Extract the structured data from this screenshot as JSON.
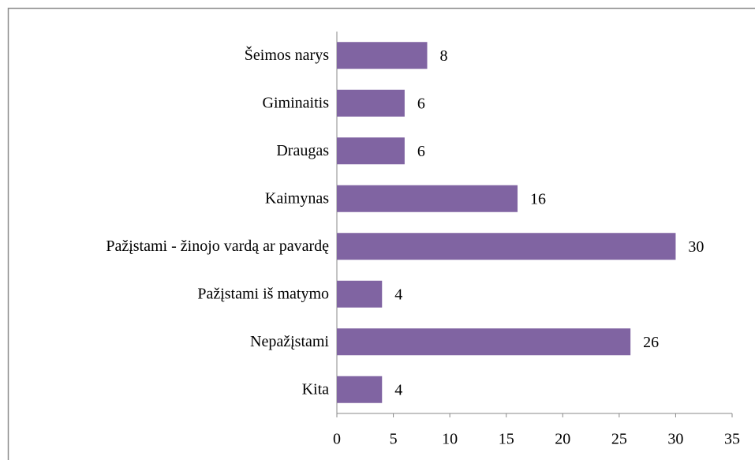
{
  "chart_data": {
    "type": "bar",
    "orientation": "horizontal",
    "categories": [
      "Šeimos narys",
      "Giminaitis",
      "Draugas",
      "Kaimynas",
      "Pažįstami - žinojo vardą ar pavardę",
      "Pažįstami iš matymo",
      "Nepažįstami",
      "Kita"
    ],
    "values": [
      8,
      6,
      6,
      16,
      30,
      4,
      26,
      4
    ],
    "color": "#8064a2",
    "xlim": [
      0,
      35
    ],
    "xticks": [
      0,
      5,
      10,
      15,
      20,
      25,
      30,
      35
    ],
    "grid": false
  }
}
